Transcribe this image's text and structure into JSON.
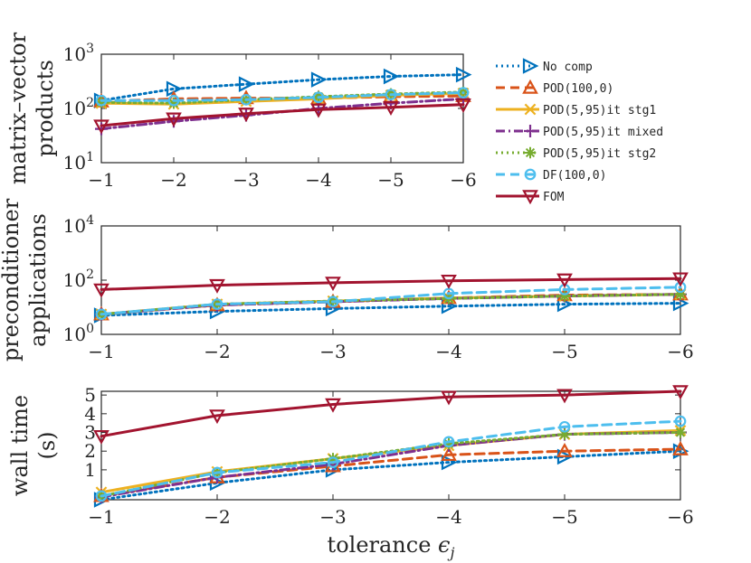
{
  "chart_data": [
    {
      "type": "line",
      "ylabel_lines": [
        "matrix–vector",
        "products"
      ],
      "yscale": "log",
      "ylim": [
        10,
        1000
      ],
      "yticks": [
        {
          "v": 10,
          "b": "10",
          "e": "1"
        },
        {
          "v": 100,
          "b": "10",
          "e": "2"
        },
        {
          "v": 1000,
          "b": "10",
          "e": "3"
        }
      ],
      "x": [
        -1,
        -2,
        -3,
        -4,
        -5,
        -6
      ],
      "xticklabels": [
        "−1",
        "−2",
        "−3",
        "−4",
        "−5",
        "−6"
      ],
      "series": [
        {
          "name": "No comp",
          "values": [
            140,
            230,
            280,
            340,
            390,
            420
          ]
        },
        {
          "name": "POD(100,0)",
          "values": [
            135,
            150,
            155,
            155,
            165,
            170
          ]
        },
        {
          "name": "POD(5,95)it stg1",
          "values": [
            125,
            120,
            135,
            150,
            175,
            190
          ]
        },
        {
          "name": "POD(5,95)it mixed",
          "values": [
            42,
            58,
            75,
            100,
            125,
            150
          ]
        },
        {
          "name": "POD(5,95)it stg2",
          "values": [
            130,
            125,
            145,
            165,
            185,
            200
          ]
        },
        {
          "name": "DF(100,0)",
          "values": [
            140,
            140,
            145,
            160,
            180,
            195
          ]
        },
        {
          "name": "FOM",
          "values": [
            48,
            65,
            80,
            95,
            105,
            118
          ]
        }
      ]
    },
    {
      "type": "line",
      "ylabel_lines": [
        "preconditioner",
        "applications"
      ],
      "yscale": "log",
      "ylim": [
        1,
        10000
      ],
      "yticks": [
        {
          "v": 1,
          "b": "10",
          "e": "0"
        },
        {
          "v": 100,
          "b": "10",
          "e": "2"
        },
        {
          "v": 10000,
          "b": "10",
          "e": "4"
        }
      ],
      "x": [
        -1,
        -2,
        -3,
        -4,
        -5,
        -6
      ],
      "xticklabels": [
        "−1",
        "−2",
        "−3",
        "−4",
        "−5",
        "−6"
      ],
      "series": [
        {
          "name": "No comp",
          "values": [
            5,
            7,
            9,
            11,
            13,
            14
          ]
        },
        {
          "name": "POD(100,0)",
          "values": [
            5.5,
            12,
            16,
            22,
            28,
            30
          ]
        },
        {
          "name": "POD(5,95)it stg1",
          "values": [
            5.5,
            13,
            17,
            22,
            26,
            30
          ]
        },
        {
          "name": "POD(5,95)it mixed",
          "values": [
            5.5,
            12,
            16,
            21,
            26,
            30
          ]
        },
        {
          "name": "POD(5,95)it stg2",
          "values": [
            5.5,
            13,
            17,
            21,
            26,
            30
          ]
        },
        {
          "name": "DF(100,0)",
          "values": [
            5.5,
            13,
            16,
            32,
            45,
            55
          ]
        },
        {
          "name": "FOM",
          "values": [
            45,
            65,
            80,
            95,
            105,
            115
          ]
        }
      ]
    },
    {
      "type": "line",
      "ylabel_lines": [
        "wall time",
        "(s)"
      ],
      "yscale": "linear",
      "ylim": [
        -0.6,
        5.2
      ],
      "yticks": [
        {
          "v": 1,
          "t": "1"
        },
        {
          "v": 2,
          "t": "2"
        },
        {
          "v": 3,
          "t": "3"
        },
        {
          "v": 4,
          "t": "4"
        },
        {
          "v": 5,
          "t": "5"
        }
      ],
      "x": [
        -1,
        -2,
        -3,
        -4,
        -5,
        -6
      ],
      "xticklabels": [
        "−1",
        "−2",
        "−3",
        "−4",
        "−5",
        "−6"
      ],
      "xlabel": "tolerance",
      "series": [
        {
          "name": "No comp",
          "values": [
            -0.6,
            0.3,
            1.0,
            1.4,
            1.7,
            2.0
          ]
        },
        {
          "name": "POD(100,0)",
          "values": [
            -0.4,
            0.6,
            1.2,
            1.8,
            2.0,
            2.1
          ]
        },
        {
          "name": "POD(5,95)it stg1",
          "values": [
            -0.2,
            0.9,
            1.6,
            2.3,
            2.9,
            3.1
          ]
        },
        {
          "name": "POD(5,95)it mixed",
          "values": [
            -0.45,
            0.6,
            1.3,
            2.3,
            2.9,
            3.0
          ]
        },
        {
          "name": "POD(5,95)it stg2",
          "values": [
            -0.4,
            0.85,
            1.6,
            2.4,
            2.9,
            3.0
          ]
        },
        {
          "name": "DF(100,0)",
          "values": [
            -0.4,
            0.85,
            1.4,
            2.5,
            3.3,
            3.6
          ]
        },
        {
          "name": "FOM",
          "values": [
            2.8,
            3.9,
            4.5,
            4.9,
            5.0,
            5.2
          ]
        }
      ]
    }
  ],
  "styles": [
    {
      "color": "#0072BD",
      "dash": "2,4",
      "marker": "tri-right"
    },
    {
      "color": "#D95319",
      "dash": "10,6",
      "marker": "tri-up"
    },
    {
      "color": "#EDB120",
      "dash": "",
      "marker": "x"
    },
    {
      "color": "#7E2F8E",
      "dash": "10,4,2,4",
      "marker": "plus"
    },
    {
      "color": "#77AC30",
      "dash": "2,4",
      "marker": "star"
    },
    {
      "color": "#4DBEEE",
      "dash": "10,6",
      "marker": "circle"
    },
    {
      "color": "#A2142F",
      "dash": "",
      "marker": "tri-down"
    }
  ],
  "legend": [
    "No comp",
    "POD(100,0)",
    "POD(5,95)it stg1",
    "POD(5,95)it mixed",
    "POD(5,95)it stg2",
    "DF(100,0)",
    "FOM"
  ]
}
